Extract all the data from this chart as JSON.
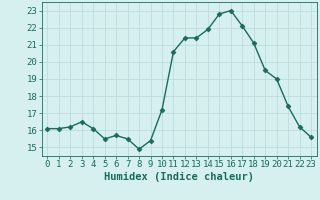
{
  "title": "",
  "xlabel": "Humidex (Indice chaleur)",
  "ylabel": "",
  "x": [
    0,
    1,
    2,
    3,
    4,
    5,
    6,
    7,
    8,
    9,
    10,
    11,
    12,
    13,
    14,
    15,
    16,
    17,
    18,
    19,
    20,
    21,
    22,
    23
  ],
  "y": [
    16.1,
    16.1,
    16.2,
    16.5,
    16.1,
    15.5,
    15.7,
    15.5,
    14.9,
    15.4,
    17.2,
    20.6,
    21.4,
    21.4,
    21.9,
    22.8,
    23.0,
    22.1,
    21.1,
    19.5,
    19.0,
    17.4,
    16.2,
    15.6
  ],
  "line_color": "#1a6b5a",
  "marker": "D",
  "marker_size": 2.5,
  "bg_color": "#d6f0f0",
  "grid_color": "#b8d8d8",
  "tick_color": "#1a6b5a",
  "label_color": "#1a6b5a",
  "ylim": [
    14.5,
    23.5
  ],
  "yticks": [
    15,
    16,
    17,
    18,
    19,
    20,
    21,
    22,
    23
  ],
  "xticks": [
    0,
    1,
    2,
    3,
    4,
    5,
    6,
    7,
    8,
    9,
    10,
    11,
    12,
    13,
    14,
    15,
    16,
    17,
    18,
    19,
    20,
    21,
    22,
    23
  ],
  "font_size": 6.5,
  "xlabel_fontsize": 7.5,
  "linewidth": 1.0
}
